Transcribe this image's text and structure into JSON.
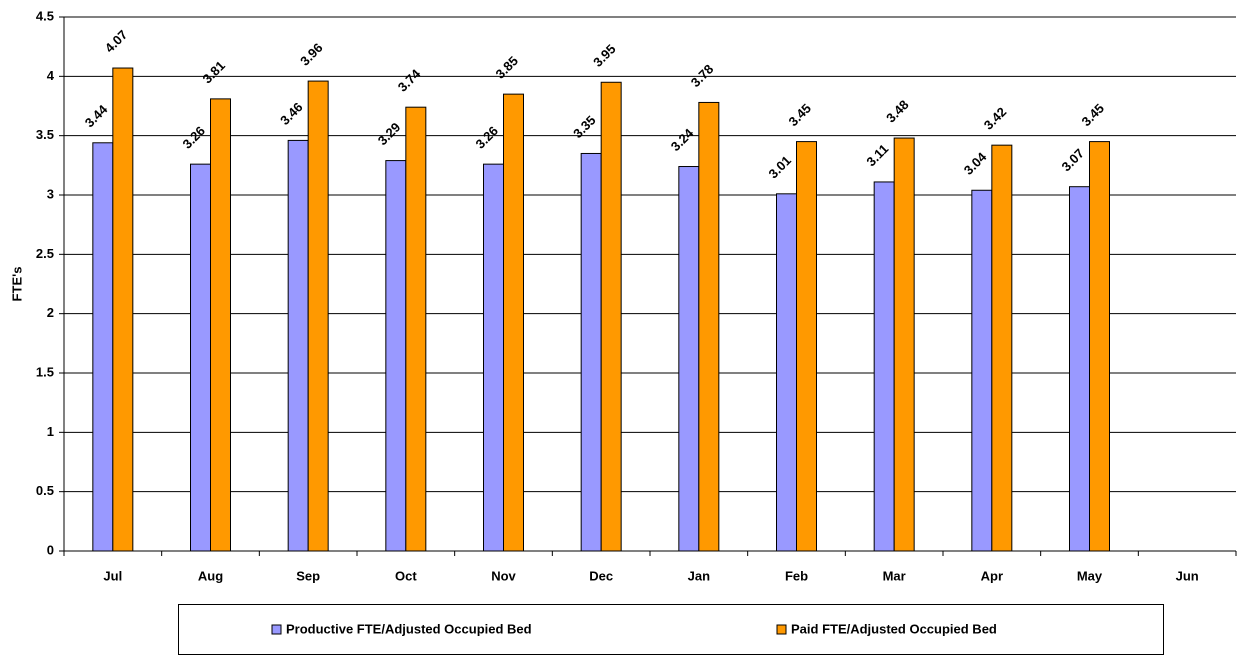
{
  "chart_data": {
    "type": "bar",
    "y_label": "FTE's",
    "categories": [
      "Jul",
      "Aug",
      "Sep",
      "Oct",
      "Nov",
      "Dec",
      "Jan",
      "Feb",
      "Mar",
      "Apr",
      "May",
      "Jun"
    ],
    "series": [
      {
        "name": "Productive FTE/Adjusted Occupied Bed",
        "color": "#9999ff",
        "values": [
          3.44,
          3.26,
          3.46,
          3.29,
          3.26,
          3.35,
          3.24,
          3.01,
          3.11,
          3.04,
          3.07,
          null
        ]
      },
      {
        "name": "Paid FTE/Adjusted Occupied Bed",
        "color": "#ff9900",
        "values": [
          4.07,
          3.81,
          3.96,
          3.74,
          3.85,
          3.95,
          3.78,
          3.45,
          3.48,
          3.42,
          3.45,
          null
        ]
      }
    ],
    "ylim": [
      0,
      4.5
    ],
    "yticks": [
      0,
      0.5,
      1,
      1.5,
      2,
      2.5,
      3,
      3.5,
      4,
      4.5
    ],
    "grid": true,
    "legend": "bottom"
  }
}
